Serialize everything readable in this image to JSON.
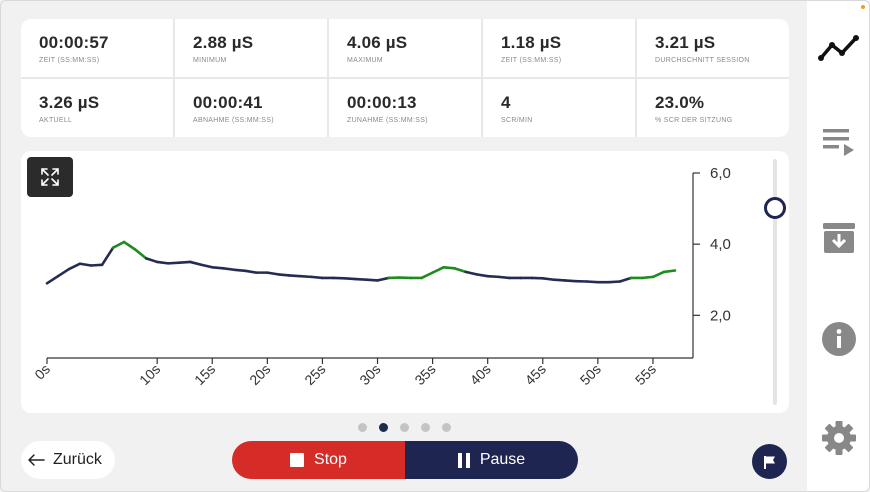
{
  "stats": [
    {
      "value": "00:00:57",
      "label": "ZEIT (SS:MM:SS)"
    },
    {
      "value": "2.88 µS",
      "label": "MINIMUM"
    },
    {
      "value": "4.06 µS",
      "label": "MAXIMUM"
    },
    {
      "value": "1.18 µS",
      "label": "ZEIT (SS:MM:SS)"
    },
    {
      "value": "3.21 µS",
      "label": "DURCHSCHNITT SESSION"
    },
    {
      "value": "3.26 µS",
      "label": "AKTUELL"
    },
    {
      "value": "00:00:41",
      "label": "ABNAHME (SS:MM:SS)"
    },
    {
      "value": "00:00:13",
      "label": "ZUNAHME (SS:MM:SS)"
    },
    {
      "value": "4",
      "label": "SCR/MIN"
    },
    {
      "value": "23.0%",
      "label": "% SCR DER SITZUNG"
    }
  ],
  "chart_data": {
    "type": "line",
    "xlabel": "",
    "ylabel": "",
    "x_ticks": [
      "0s",
      "10s",
      "15s",
      "20s",
      "25s",
      "30s",
      "35s",
      "40s",
      "45s",
      "50s",
      "55s"
    ],
    "y_ticks": [
      "2,0",
      "4,0",
      "6,0"
    ],
    "ylim": [
      0.8,
      6.0
    ],
    "xlim": [
      0,
      58
    ],
    "grid": false,
    "colors": {
      "normal": "#252c54",
      "scr": "#1f8a1f"
    },
    "series": [
      {
        "points": [
          [
            0,
            2.9
          ],
          [
            1,
            3.1
          ],
          [
            2,
            3.3
          ],
          [
            3,
            3.45
          ],
          [
            4,
            3.4
          ],
          [
            5,
            3.42
          ],
          [
            6,
            3.9
          ],
          [
            7,
            4.06
          ],
          [
            8,
            3.85
          ],
          [
            9,
            3.6
          ],
          [
            10,
            3.5
          ],
          [
            11,
            3.46
          ],
          [
            12,
            3.48
          ],
          [
            13,
            3.5
          ],
          [
            14,
            3.42
          ],
          [
            15,
            3.35
          ],
          [
            16,
            3.32
          ],
          [
            17,
            3.28
          ],
          [
            18,
            3.25
          ],
          [
            19,
            3.2
          ],
          [
            20,
            3.2
          ],
          [
            21,
            3.15
          ],
          [
            22,
            3.12
          ],
          [
            23,
            3.1
          ],
          [
            24,
            3.08
          ],
          [
            25,
            3.05
          ],
          [
            26,
            3.05
          ],
          [
            27,
            3.04
          ],
          [
            28,
            3.02
          ],
          [
            29,
            3.0
          ],
          [
            30,
            2.98
          ],
          [
            31,
            3.05
          ],
          [
            32,
            3.06
          ],
          [
            33,
            3.05
          ],
          [
            34,
            3.05
          ],
          [
            35,
            3.2
          ],
          [
            36,
            3.35
          ],
          [
            37,
            3.32
          ],
          [
            38,
            3.22
          ],
          [
            39,
            3.15
          ],
          [
            40,
            3.1
          ],
          [
            41,
            3.08
          ],
          [
            42,
            3.05
          ],
          [
            43,
            3.05
          ],
          [
            44,
            3.05
          ],
          [
            45,
            3.04
          ],
          [
            46,
            3.0
          ],
          [
            47,
            2.98
          ],
          [
            48,
            2.96
          ],
          [
            49,
            2.95
          ],
          [
            50,
            2.93
          ],
          [
            51,
            2.93
          ],
          [
            52,
            2.95
          ],
          [
            53,
            3.05
          ],
          [
            54,
            3.05
          ],
          [
            55,
            3.08
          ],
          [
            56,
            3.22
          ],
          [
            57,
            3.26
          ]
        ],
        "scr_ranges": [
          [
            6,
            9
          ],
          [
            31,
            38
          ],
          [
            53,
            57
          ]
        ]
      }
    ]
  },
  "pager": {
    "count": 5,
    "active": 1
  },
  "buttons": {
    "back": "Zurück",
    "stop": "Stop",
    "pause": "Pause"
  },
  "sidebar_icons": [
    "graph-icon",
    "playlist-icon",
    "archive-icon",
    "info-icon",
    "settings-icon"
  ]
}
